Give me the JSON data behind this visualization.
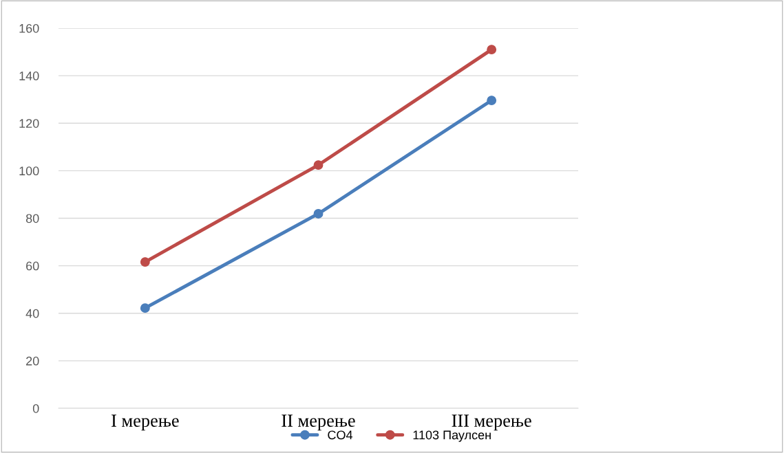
{
  "chart_data": {
    "type": "line",
    "categories": [
      "I мерење",
      "II мерење",
      "III мерење"
    ],
    "series": [
      {
        "name": "CO4",
        "color": "#4a7ebb",
        "values": [
          42.2,
          81.9,
          129.6
        ]
      },
      {
        "name": "1103 Паулсен",
        "color": "#be4b48",
        "values": [
          61.6,
          102.4,
          151
        ]
      }
    ],
    "ylim": [
      0,
      160
    ],
    "yticks": [
      0,
      20,
      40,
      60,
      80,
      100,
      120,
      140,
      160
    ],
    "grid": "y",
    "legend": "bottom",
    "marker": "circle",
    "line_style": "solid"
  }
}
